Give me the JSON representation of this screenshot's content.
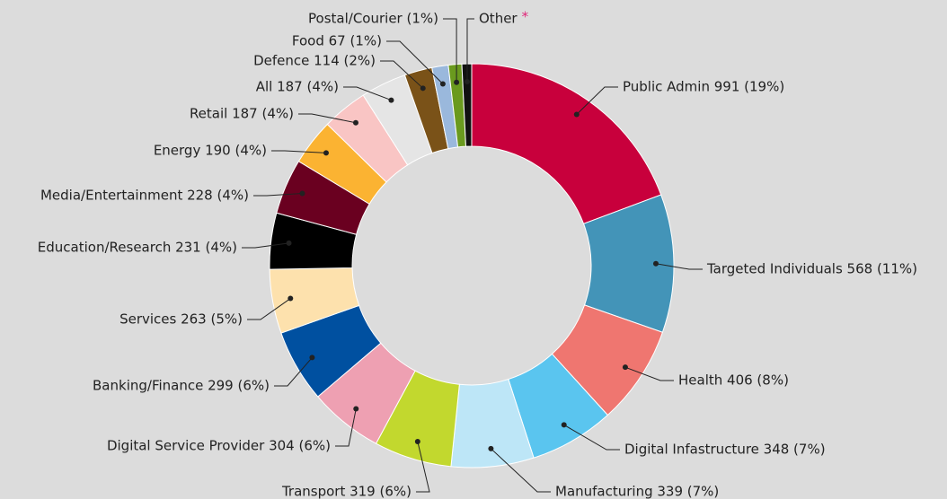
{
  "chart_data": {
    "type": "pie",
    "donut": true,
    "categories": [
      "Public Admin 991 (19%)",
      "Targeted Individuals 568 (11%)",
      "Health 406 (8%)",
      "Digital Infastructure 348 (7%)",
      "Manufacturing 339 (7%)",
      "Transport 319 (6%)",
      "Digital Service Provider 304 (6%)",
      "Banking/Finance 299 (6%)",
      "Services 263 (5%)",
      "Education/Research 231 (4%)",
      "Media/Entertainment 228 (4%)",
      "Energy 190 (4%)",
      "Retail 187 (4%)",
      "All 187 (4%)",
      "Defence 114 (2%)",
      "Food 67 (1%)",
      "Postal/Courier (1%)",
      "Other"
    ],
    "values": [
      991,
      568,
      406,
      348,
      339,
      319,
      304,
      299,
      263,
      231,
      228,
      190,
      187,
      187,
      114,
      67,
      55,
      40
    ],
    "colors": [
      "#c8003c",
      "#4394b8",
      "#ef7670",
      "#5ac5ef",
      "#bde6f7",
      "#c2d82e",
      "#eea0b2",
      "#0050a0",
      "#fde1ad",
      "#000000",
      "#6a0020",
      "#fbb332",
      "#f9c5c4",
      "#e5e5e5",
      "#7a5218",
      "#9ab8dc",
      "#6a9a1e",
      "#111111"
    ],
    "annotation": "*",
    "annotation_color": "#e0287a"
  }
}
